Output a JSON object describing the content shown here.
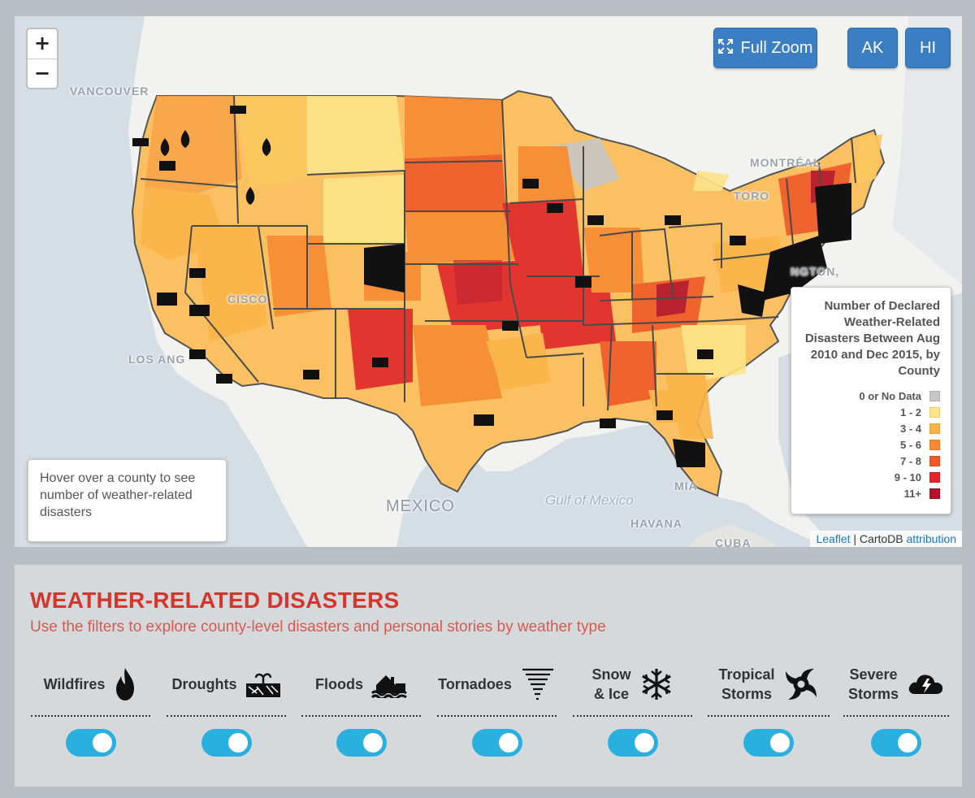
{
  "map": {
    "zoom_in": "+",
    "zoom_out": "−",
    "buttons": {
      "full_zoom": "Full Zoom",
      "ak": "AK",
      "hi": "HI"
    },
    "places": {
      "vancouver": "VANCOUVER",
      "montreal": "MONTRÉAL",
      "toronto": "TORO",
      "los_angeles": "LOS ANG",
      "mexico": "MEXICO",
      "gulf": "Gulf of Mexico",
      "havana": "HAVANA",
      "cuba": "CUBA",
      "miami": "MIA",
      "washington": "NGTON,",
      "francisco": "CISCO"
    },
    "info_text": "Hover over a county to see number of weather-related disasters",
    "attribution": {
      "leaflet": "Leaflet",
      "sep": " | CartoDB ",
      "link": "attribution"
    }
  },
  "legend": {
    "title": "Number of Declared Weather-Related Disasters Between Aug 2010 and Dec 2015, by County",
    "items": [
      {
        "label": "0 or No Data",
        "color": "#c6c6c6"
      },
      {
        "label": "1 - 2",
        "color": "#fde48a"
      },
      {
        "label": "3 - 4",
        "color": "#fbb449"
      },
      {
        "label": "5 - 6",
        "color": "#f78a32"
      },
      {
        "label": "7 - 8",
        "color": "#ef5a2a"
      },
      {
        "label": "9 - 10",
        "color": "#e0262b"
      },
      {
        "label": "11+",
        "color": "#b3122b"
      }
    ]
  },
  "panel": {
    "title": "WEATHER-RELATED DISASTERS",
    "subtitle": "Use the filters to explore county-level disasters and personal stories by weather type",
    "filters": [
      {
        "line1": "Wildfires",
        "line2": "",
        "icon": "fire-icon",
        "on": true
      },
      {
        "line1": "Droughts",
        "line2": "",
        "icon": "drought-icon",
        "on": true
      },
      {
        "line1": "Floods",
        "line2": "",
        "icon": "flood-icon",
        "on": true
      },
      {
        "line1": "Tornadoes",
        "line2": "",
        "icon": "tornado-icon",
        "on": true
      },
      {
        "line1": "Snow",
        "line2": "& Ice",
        "icon": "snowflake-icon",
        "on": true
      },
      {
        "line1": "Tropical",
        "line2": "Storms",
        "icon": "hurricane-icon",
        "on": true
      },
      {
        "line1": "Severe",
        "line2": "Storms",
        "icon": "storm-cloud-icon",
        "on": true
      }
    ]
  },
  "colors": {
    "accent_red": "#d5352a",
    "toggle_blue": "#2ab0df",
    "button_blue": "#3a7fc4"
  }
}
